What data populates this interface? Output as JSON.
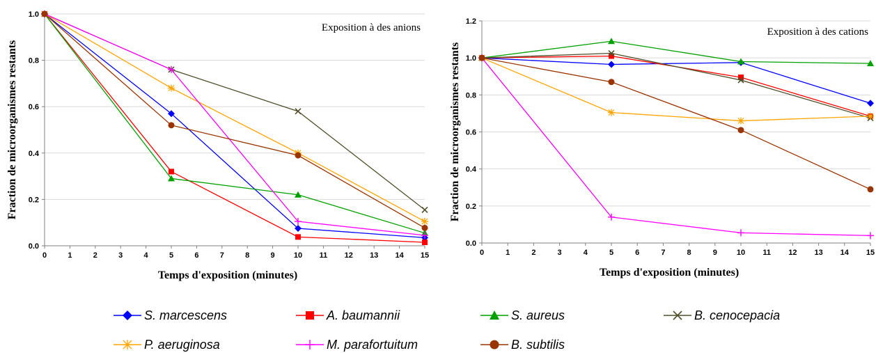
{
  "chart_data": [
    {
      "type": "line",
      "annotation": "Exposition à des anions",
      "xlabel": "Temps d'exposition (minutes)",
      "ylabel": "Fraction de microorganismes restants",
      "xlim": [
        0,
        15
      ],
      "ylim": [
        0,
        1.0
      ],
      "x_ticks": [
        0,
        1,
        2,
        3,
        4,
        5,
        6,
        7,
        8,
        9,
        10,
        11,
        12,
        13,
        14,
        15
      ],
      "y_ticks": [
        "0.0",
        "0.2",
        "0.4",
        "0.6",
        "0.8",
        "1.0"
      ],
      "grid": "horizontal",
      "x": [
        0,
        5,
        10,
        15
      ],
      "series": [
        {
          "name": "S. marcescens",
          "values": [
            1.0,
            0.57,
            0.075,
            0.035
          ]
        },
        {
          "name": "A. baumannii",
          "values": [
            1.0,
            0.32,
            0.038,
            0.015
          ]
        },
        {
          "name": "S. aureus",
          "values": [
            1.0,
            0.29,
            0.22,
            0.055
          ]
        },
        {
          "name": "B. cenocepacia",
          "values": [
            1.0,
            0.76,
            0.58,
            0.155
          ]
        },
        {
          "name": "P. aeruginosa",
          "values": [
            1.0,
            0.68,
            0.4,
            0.105
          ]
        },
        {
          "name": "M. parafortuitum",
          "values": [
            1.0,
            0.76,
            0.105,
            0.045
          ]
        },
        {
          "name": "B. subtilis",
          "values": [
            1.0,
            0.52,
            0.39,
            0.077
          ]
        }
      ]
    },
    {
      "type": "line",
      "annotation": "Exposition à des cations",
      "xlabel": "Temps d'exposition (minutes)",
      "ylabel": "Fraction de microorganismes restants",
      "xlim": [
        0,
        15
      ],
      "ylim": [
        0,
        1.2
      ],
      "x_ticks": [
        0,
        1,
        2,
        3,
        4,
        5,
        6,
        7,
        8,
        9,
        10,
        11,
        12,
        13,
        14,
        15
      ],
      "y_ticks": [
        "0.0",
        "0.2",
        "0.4",
        "0.6",
        "0.8",
        "1.0",
        "1.2"
      ],
      "grid": "horizontal",
      "x": [
        0,
        5,
        10,
        15
      ],
      "series": [
        {
          "name": "S. marcescens",
          "values": [
            1.0,
            0.965,
            0.975,
            0.755
          ]
        },
        {
          "name": "A. baumannii",
          "values": [
            1.0,
            1.01,
            0.895,
            0.685
          ]
        },
        {
          "name": "S. aureus",
          "values": [
            1.0,
            1.09,
            0.98,
            0.97
          ]
        },
        {
          "name": "B. cenocepacia",
          "values": [
            1.0,
            1.025,
            0.88,
            0.675
          ]
        },
        {
          "name": "P. aeruginosa",
          "values": [
            1.0,
            0.705,
            0.66,
            0.685
          ]
        },
        {
          "name": "M. parafortuitum",
          "values": [
            1.0,
            0.14,
            0.055,
            0.04
          ]
        },
        {
          "name": "B. subtilis",
          "values": [
            1.0,
            0.87,
            0.61,
            0.29
          ]
        }
      ]
    }
  ],
  "legend": {
    "placement": "bottom",
    "entries": [
      {
        "name": "S. marcescens",
        "color": "#0000ff",
        "marker": "diamond"
      },
      {
        "name": "A. baumannii",
        "color": "#ff0000",
        "marker": "square"
      },
      {
        "name": "S. aureus",
        "color": "#00a000",
        "marker": "triangle"
      },
      {
        "name": "B. cenocepacia",
        "color": "#4f4f2a",
        "marker": "x"
      },
      {
        "name": "P. aeruginosa",
        "color": "#ffa500",
        "marker": "star"
      },
      {
        "name": "M. parafortuitum",
        "color": "#ff00ff",
        "marker": "plus"
      },
      {
        "name": "B. subtilis",
        "color": "#993300",
        "marker": "circle"
      }
    ]
  }
}
